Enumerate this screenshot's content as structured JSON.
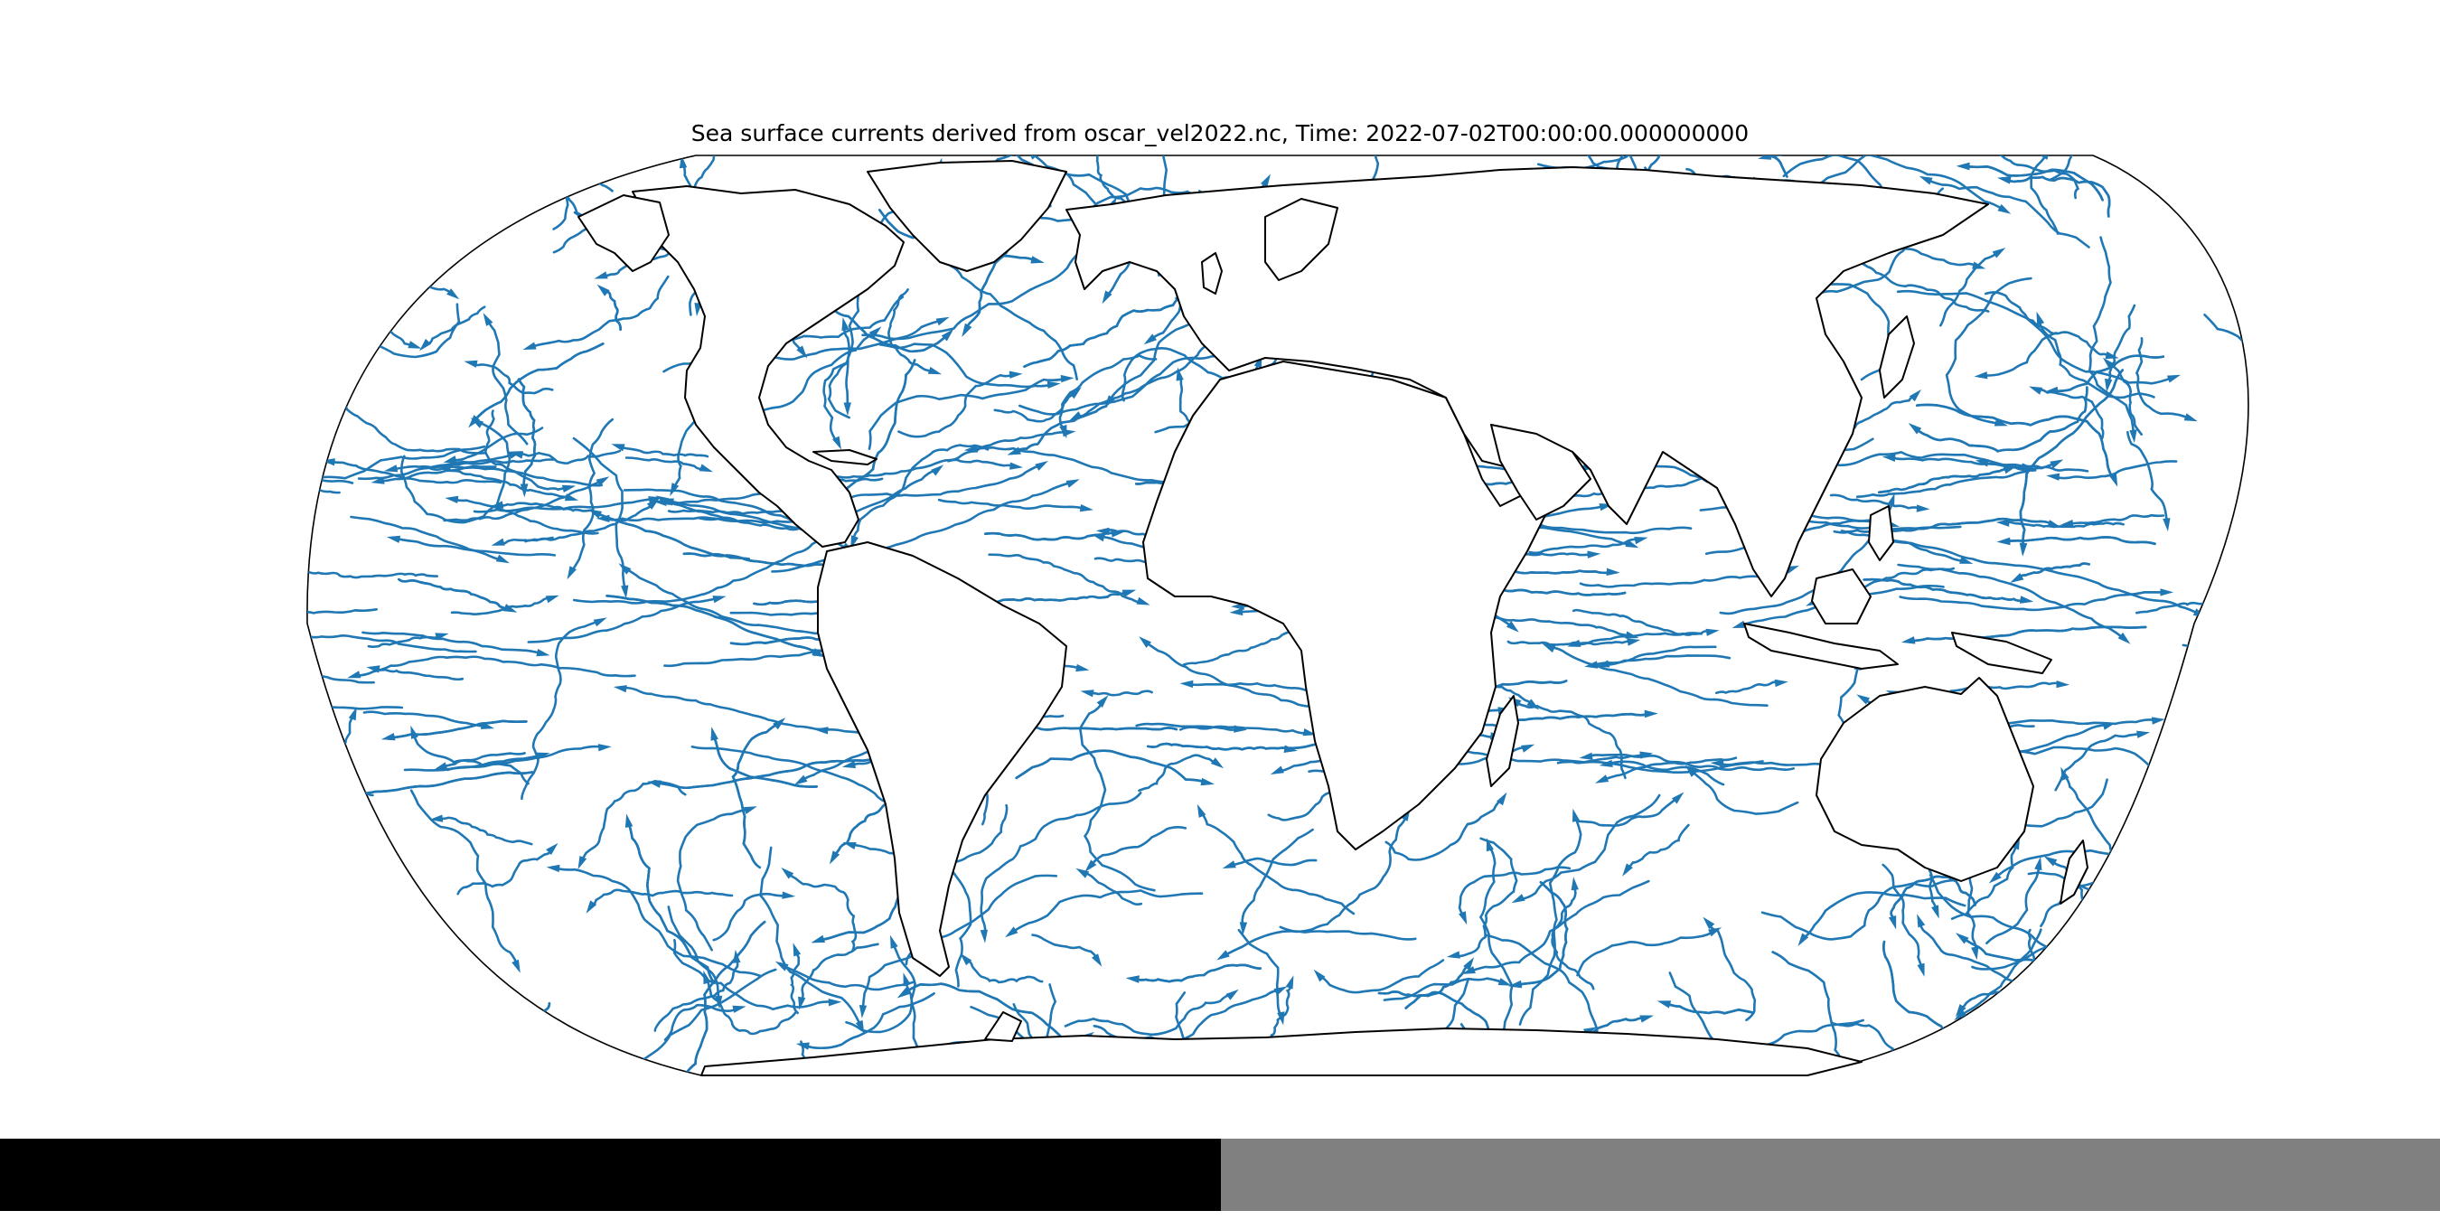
{
  "title": "Sea surface currents derived from oscar_vel2022.nc, Time: 2022-07-02T00:00:00.000000000",
  "map": {
    "projection": "robinson",
    "features": [
      "coastlines",
      "streamlines"
    ],
    "colors": {
      "streamline": "#1f77b4",
      "coastline": "#000000",
      "frame": "#000000",
      "background": "#ffffff"
    }
  },
  "colorbar": {
    "colors": [
      "#000000",
      "#808080"
    ]
  }
}
